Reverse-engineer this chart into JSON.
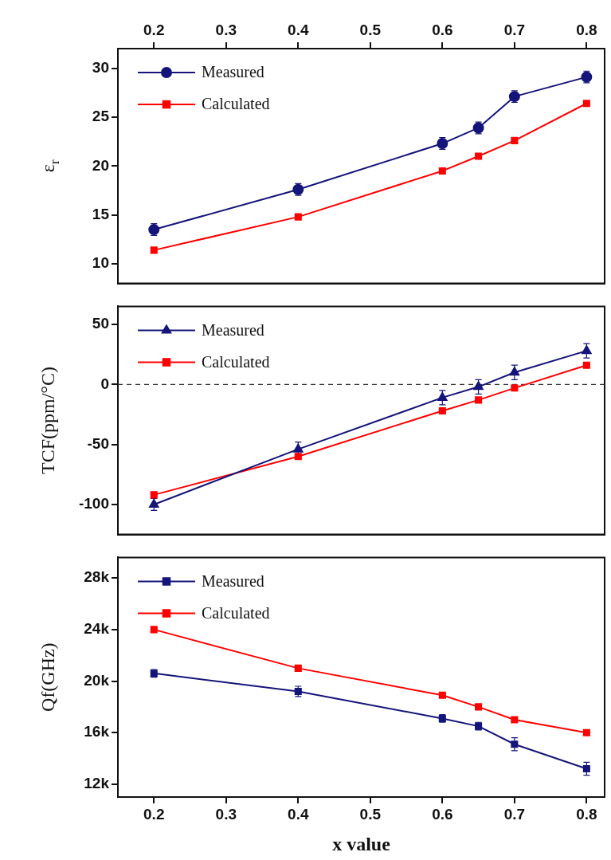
{
  "chart_data": [
    {
      "type": "line",
      "ylabel": "ε$_{r}$",
      "x": [
        0.2,
        0.4,
        0.6,
        0.65,
        0.7,
        0.8
      ],
      "xlim": [
        0.15,
        0.825
      ],
      "x2lim": [
        0.15,
        0.825
      ],
      "x2ticks": [
        0.2,
        0.3,
        0.4,
        0.5,
        0.6,
        0.7,
        0.8
      ],
      "ylim": [
        8,
        32
      ],
      "yticks": [
        10,
        15,
        20,
        25,
        30
      ],
      "tick_labels": "y",
      "grid": false,
      "legend": "top left",
      "line_style": "solid",
      "series": [
        {
          "name": "Measured",
          "color": "#14147a",
          "marker": "circle",
          "values": [
            13.5,
            17.6,
            22.3,
            23.9,
            27.1,
            29.1
          ],
          "errors": [
            0.6,
            0.6,
            0.6,
            0.6,
            0.6,
            0.6
          ]
        },
        {
          "name": "Calculated",
          "color": "#ff0000",
          "marker": "square",
          "values": [
            11.4,
            14.8,
            19.5,
            21.0,
            22.6,
            26.4
          ]
        }
      ]
    },
    {
      "type": "line",
      "ylabel": "TCF(ppm/°C)",
      "x": [
        0.2,
        0.4,
        0.6,
        0.65,
        0.7,
        0.8
      ],
      "xlim": [
        0.15,
        0.825
      ],
      "ylim": [
        -125,
        65
      ],
      "yticks": [
        -100,
        -50,
        0,
        50
      ],
      "tick_labels": "y",
      "grid": false,
      "legend": "top left",
      "line_style": "solid",
      "ref_lines": [
        {
          "axis": "y",
          "value": 0,
          "color": "#333333",
          "line_style": "dashed"
        }
      ],
      "series": [
        {
          "name": "Measured",
          "color": "#14147a",
          "marker": "triangle",
          "values": [
            -100,
            -54,
            -11,
            -2,
            10,
            28
          ],
          "errors": [
            5,
            6,
            6,
            6,
            6,
            6
          ]
        },
        {
          "name": "Calculated",
          "color": "#ff0000",
          "marker": "square",
          "values": [
            -92,
            -60,
            -22,
            -13,
            -3,
            16
          ]
        }
      ]
    },
    {
      "type": "line",
      "ylabel": "Qf(GHz)",
      "xlabel": "x value",
      "x": [
        0.2,
        0.4,
        0.6,
        0.65,
        0.7,
        0.8
      ],
      "xlim": [
        0.15,
        0.825
      ],
      "xticks": [
        0.2,
        0.3,
        0.4,
        0.5,
        0.6,
        0.7,
        0.8
      ],
      "ylim": [
        11000,
        29600
      ],
      "yticks": [
        {
          "value": 12000,
          "label": "12k"
        },
        {
          "value": 16000,
          "label": "16k"
        },
        {
          "value": 20000,
          "label": "20k"
        },
        {
          "value": 24000,
          "label": "24k"
        },
        {
          "value": 28000,
          "label": "28k"
        }
      ],
      "grid": false,
      "legend": "top left",
      "line_style": "solid",
      "series": [
        {
          "name": "Measured",
          "color": "#14147a",
          "marker": "square",
          "values": [
            20600,
            19200,
            17100,
            16500,
            15100,
            13200
          ],
          "errors": [
            300,
            400,
            300,
            300,
            500,
            500
          ]
        },
        {
          "name": "Calculated",
          "color": "#ff0000",
          "marker": "square",
          "values": [
            24000,
            21000,
            18900,
            18000,
            17000,
            16000
          ]
        }
      ]
    }
  ]
}
